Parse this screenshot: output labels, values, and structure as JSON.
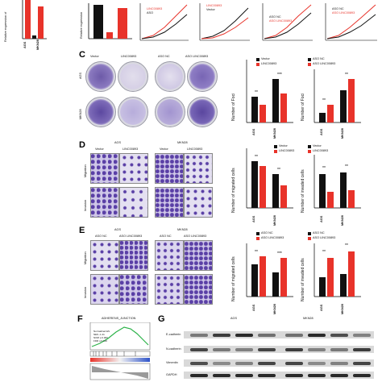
{
  "panels": {
    "C": "C",
    "D": "D",
    "E": "E",
    "F": "F",
    "G": "G"
  },
  "top_row": {
    "bar1": {
      "ylabel": "Relative expression of",
      "categories": [
        "AGS",
        "MKN28"
      ]
    },
    "bar2": {
      "ylabel": "Relative expression"
    },
    "line_legends": [
      [
        "LINC00893",
        "ASO"
      ],
      [
        "LINC00893",
        "Vector"
      ],
      [
        "ASO NC",
        "ASO LINC00893"
      ],
      [
        "ASO NC",
        "ASO LINC00893"
      ]
    ]
  },
  "C": {
    "dish_labels": {
      "vector": "Vector",
      "linc": "LINC00893",
      "aso_nc": "ASO NC",
      "aso_linc": "ASO LINC00893"
    },
    "row_labels": {
      "ags": "AGS",
      "mkn28": "MKN28"
    },
    "chart1": {
      "ylabel": "Number of Foci",
      "legend": [
        "Vector",
        "LINC00893"
      ],
      "categories": [
        "AGS",
        "MKN28"
      ]
    },
    "chart2": {
      "ylabel": "Number of Foci",
      "legend": [
        "ASO NC",
        "ASO LINC00893"
      ],
      "categories": [
        "AGS",
        "MKN28"
      ]
    }
  },
  "D": {
    "group_left": "AGS",
    "group_right": "MKN28",
    "col_labels": [
      "Vector",
      "LINC00893",
      "Vector",
      "LINC00893"
    ],
    "row_labels": [
      "Migration",
      "Invasion"
    ],
    "chart1": {
      "ylabel": "Number of migrated cells",
      "legend": [
        "Vector",
        "LINC00893"
      ],
      "categories": [
        "AGS",
        "MKN28"
      ]
    },
    "chart2": {
      "ylabel": "Number of invaded cells",
      "legend": [
        "Vector",
        "LINC00893"
      ],
      "categories": [
        "AGS",
        "MKN28"
      ]
    }
  },
  "E": {
    "group_left": "AGS",
    "group_right": "MKN28",
    "col_labels": [
      "ASO NC",
      "ASO LINC00893",
      "ASO NC",
      "ASO LINC00893"
    ],
    "row_labels": [
      "Migration",
      "Invasion"
    ],
    "chart1": {
      "ylabel": "Number of migrated cells",
      "legend": [
        "ASO NC",
        "ASO LINC00893"
      ],
      "categories": [
        "AGS",
        "MKN28"
      ]
    },
    "chart2": {
      "ylabel": "Number of invaded cells",
      "legend": [
        "ASO NC",
        "ASO LINC00893"
      ],
      "categories": [
        "AGS",
        "MKN28"
      ]
    }
  },
  "F": {
    "title": "ADHERENS_JUNCTION",
    "stats": [
      "Normalized ES",
      "NES -1.41",
      "NOM p 0.000",
      "FDR q 0.119"
    ]
  },
  "G": {
    "group_left": "AGS",
    "group_right": "MKN28",
    "blots": [
      "E-cadherin",
      "N-cadherin",
      "Vimentin",
      "GAPDH"
    ]
  },
  "colors": {
    "black": "#1a1a1a",
    "red": "#e8332a",
    "dish_bg": "#ece9f0",
    "micro_bg": "#cfc7e8",
    "stain": "#5a3fa6"
  }
}
